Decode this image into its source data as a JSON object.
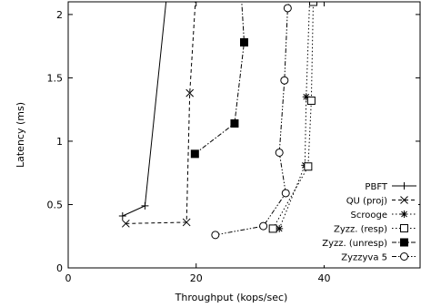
{
  "chart_data": {
    "type": "line",
    "xlabel": "Throughput (kops/sec)",
    "ylabel": "Latency (ms)",
    "xlim": [
      0,
      55
    ],
    "ylim": [
      0,
      2.1
    ],
    "x_ticks": [
      0,
      20,
      40
    ],
    "y_ticks": [
      0,
      0.5,
      1,
      1.5,
      2
    ],
    "x_tick_labels": [
      "0",
      "20",
      "40"
    ],
    "y_tick_labels": [
      "0",
      "0.5",
      "1",
      "1.5",
      "2"
    ],
    "grid": false,
    "legend_position": "bottom-right",
    "series": [
      {
        "name": "PBFT",
        "marker": "plus",
        "dash": "solid",
        "x": [
          8.5,
          12.0,
          15.5
        ],
        "y": [
          0.41,
          0.49,
          2.2
        ]
      },
      {
        "name": "QU (proj)",
        "marker": "x",
        "dash": "dashed",
        "x": [
          9.0,
          18.5,
          19.0,
          20.0
        ],
        "y": [
          0.35,
          0.36,
          1.38,
          2.2
        ]
      },
      {
        "name": "Scrooge",
        "marker": "star",
        "dash": "dotted",
        "x": [
          33.0,
          37.0,
          37.2,
          37.8
        ],
        "y": [
          0.31,
          0.81,
          1.35,
          2.2
        ]
      },
      {
        "name": "Zyzz. (resp)",
        "marker": "square-open",
        "dash": "dotted",
        "x": [
          32.0,
          37.5,
          38.0,
          38.3
        ],
        "y": [
          0.31,
          0.8,
          1.32,
          2.1
        ]
      },
      {
        "name": "Zyzz. (unresp)",
        "marker": "square-filled",
        "dash": "dashdot",
        "x": [
          19.8,
          26.0,
          27.5,
          27.0
        ],
        "y": [
          0.9,
          1.14,
          1.78,
          2.2
        ]
      },
      {
        "name": "Zyzzyva 5",
        "marker": "circle-open",
        "dash": "dashdotdot",
        "x": [
          23.0,
          30.5,
          34.0,
          33.0,
          33.8,
          34.3,
          35.0
        ],
        "y": [
          0.26,
          0.33,
          0.59,
          0.91,
          1.48,
          2.05,
          2.2
        ]
      }
    ]
  }
}
